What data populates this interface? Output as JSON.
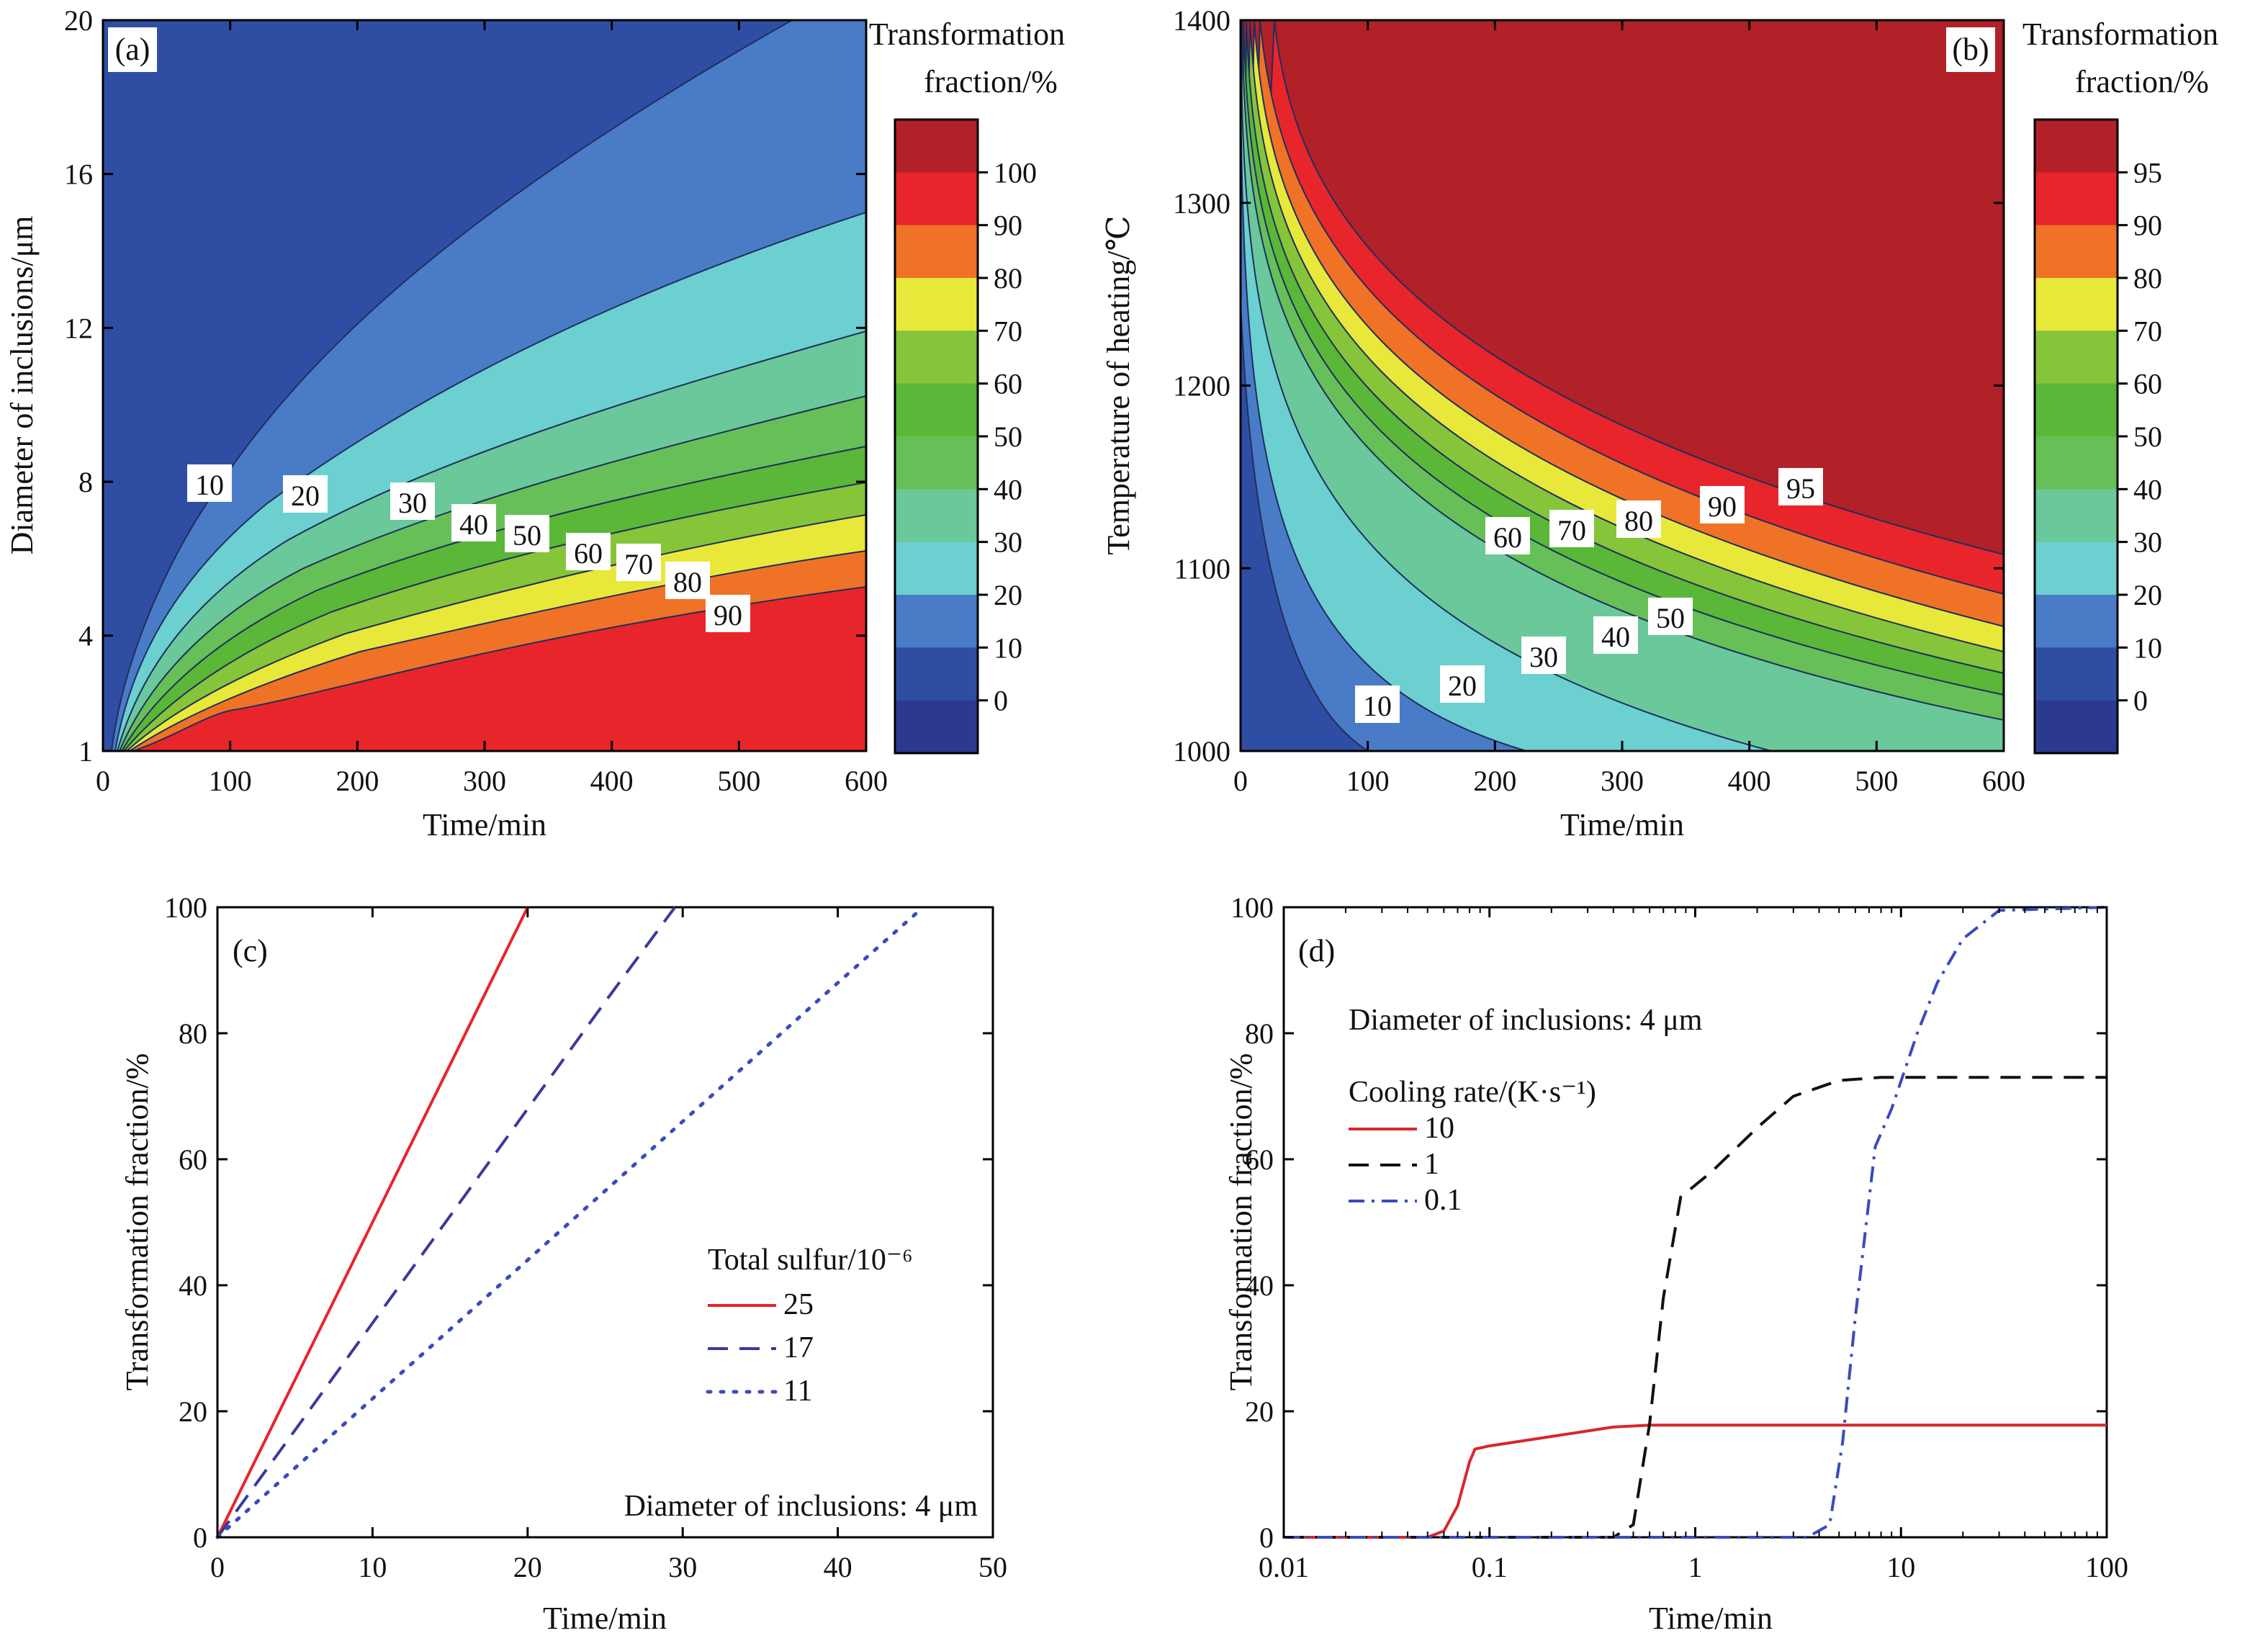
{
  "figure": {
    "panels": [
      {
        "id": "a",
        "label": "(a)"
      },
      {
        "id": "b",
        "label": "(b)"
      },
      {
        "id": "c",
        "label": "(c)"
      },
      {
        "id": "d",
        "label": "(d)"
      }
    ]
  },
  "chart_data": [
    {
      "id": "a",
      "type": "heatmap",
      "panel_label": "(a)",
      "xlabel": "Time/min",
      "ylabel": "Diameter of inclusions/μm",
      "xlim": [
        0,
        600
      ],
      "ylim": [
        1,
        20
      ],
      "xticks": [
        0,
        100,
        200,
        300,
        400,
        500,
        600
      ],
      "yticks": [
        1,
        4,
        8,
        12,
        16,
        20
      ],
      "colorbar": {
        "title_line1": "Transformation",
        "title_line2": "fraction/%",
        "ticks": [
          "100",
          "90",
          "80",
          "70",
          "60",
          "50",
          "40",
          "30",
          "20",
          "10",
          "0"
        ],
        "colors": [
          "#b22028",
          "#e8252b",
          "#f07226",
          "#e8e83a",
          "#86c43a",
          "#5ab737",
          "#67bf58",
          "#6ac89a",
          "#6ccfd0",
          "#4a7bc7",
          "#2f4ea3",
          "#2b3a8f"
        ]
      },
      "contour_levels": [
        10,
        20,
        30,
        40,
        50,
        60,
        70,
        80,
        90
      ],
      "contour_labels": [
        "10",
        "20",
        "30",
        "40",
        "50",
        "60",
        "70",
        "80",
        "90"
      ]
    },
    {
      "id": "b",
      "type": "heatmap",
      "panel_label": "(b)",
      "xlabel": "Time/min",
      "ylabel": "Temperature of heating/℃",
      "xlim": [
        0,
        600
      ],
      "ylim": [
        1000,
        1400
      ],
      "xticks": [
        0,
        100,
        200,
        300,
        400,
        500,
        600
      ],
      "yticks": [
        1000,
        1100,
        1200,
        1300,
        1400
      ],
      "colorbar": {
        "title_line1": "Transformation",
        "title_line2": "fraction/%",
        "ticks": [
          "95",
          "90",
          "80",
          "70",
          "60",
          "50",
          "40",
          "30",
          "20",
          "10",
          "0"
        ],
        "colors": [
          "#b22028",
          "#e8252b",
          "#f07226",
          "#e8e83a",
          "#86c43a",
          "#5ab737",
          "#67bf58",
          "#6ac89a",
          "#6ccfd0",
          "#4a7bc7",
          "#2f4ea3",
          "#2b3a8f"
        ]
      },
      "contour_levels": [
        10,
        20,
        30,
        40,
        50,
        60,
        70,
        80,
        90,
        95
      ],
      "contour_labels": [
        "10",
        "20",
        "30",
        "40",
        "50",
        "60",
        "70",
        "80",
        "90",
        "95"
      ]
    },
    {
      "id": "c",
      "type": "line",
      "panel_label": "(c)",
      "xlabel": "Time/min",
      "ylabel": "Transformation fraction/%",
      "xlim": [
        0,
        50
      ],
      "ylim": [
        0,
        100
      ],
      "xticks": [
        0,
        10,
        20,
        30,
        40,
        50
      ],
      "yticks": [
        0,
        20,
        40,
        60,
        80,
        100
      ],
      "legend_title": "Total sulfur/10⁻⁶",
      "annotation": "Diameter of inclusions: 4 μm",
      "series": [
        {
          "name": "25",
          "color": "#e8252b",
          "dash": "solid",
          "x": [
            0,
            5,
            10,
            15,
            20
          ],
          "y": [
            0,
            25,
            50,
            75,
            100
          ]
        },
        {
          "name": "17",
          "color": "#3a3a9c",
          "dash": "dashed",
          "x": [
            0,
            5,
            10,
            15,
            20,
            25,
            29.5
          ],
          "y": [
            0,
            17,
            34,
            51,
            68,
            85,
            100
          ]
        },
        {
          "name": "11",
          "color": "#3a4bbd",
          "dash": "dotted",
          "x": [
            0,
            5,
            10,
            15,
            20,
            25,
            30,
            35,
            40,
            45.5
          ],
          "y": [
            0,
            11,
            22,
            33,
            44,
            55,
            66,
            77,
            88,
            100
          ]
        }
      ]
    },
    {
      "id": "d",
      "type": "line",
      "panel_label": "(d)",
      "xlabel": "Time/min",
      "ylabel": "Transformation fraction/%",
      "xscale": "log",
      "xlim": [
        0.01,
        100
      ],
      "ylim": [
        0,
        100
      ],
      "xticks": [
        "0.01",
        "0.1",
        "1",
        "10",
        "100"
      ],
      "yticks": [
        0,
        20,
        40,
        60,
        80,
        100
      ],
      "annotation": "Diameter of inclusions: 4 μm",
      "legend_title": "Cooling rate/(K·s⁻¹)",
      "series": [
        {
          "name": "10",
          "color": "#d9262b",
          "dash": "solid",
          "x": [
            0.01,
            0.05,
            0.06,
            0.07,
            0.08,
            0.085,
            0.1,
            0.2,
            0.4,
            0.6,
            1,
            10,
            100
          ],
          "y": [
            0,
            0,
            1,
            5,
            12,
            14,
            14.5,
            16,
            17.5,
            17.8,
            17.8,
            17.8,
            17.8
          ]
        },
        {
          "name": "1",
          "color": "#111111",
          "dash": "dashed",
          "x": [
            0.01,
            0.4,
            0.5,
            0.6,
            0.7,
            0.85,
            1.2,
            2,
            3,
            5,
            8,
            20,
            100
          ],
          "y": [
            0,
            0,
            2,
            18,
            38,
            54,
            58,
            65,
            70,
            72.5,
            73,
            73,
            73
          ]
        },
        {
          "name": "0.1",
          "color": "#3a4bbd",
          "dash": "dashdot",
          "x": [
            0.01,
            3.5,
            4.5,
            5.2,
            6,
            7.5,
            9,
            12,
            15,
            20,
            30,
            100
          ],
          "y": [
            0,
            0,
            2,
            15,
            35,
            62,
            68,
            80,
            88,
            95,
            99.5,
            100
          ]
        }
      ]
    }
  ]
}
